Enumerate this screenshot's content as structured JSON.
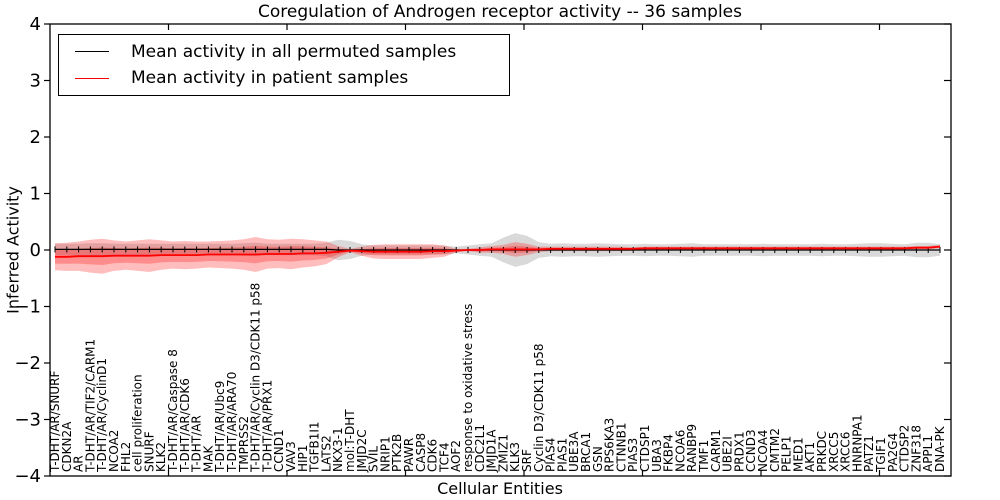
{
  "chart_data": {
    "type": "line",
    "title": "Coregulation of Androgen receptor activity -- 36 samples",
    "xlabel": "Cellular Entities",
    "ylabel": "Inferred Activity",
    "ylim": [
      -4,
      4
    ],
    "yticks": [
      -4,
      -3,
      -2,
      -1,
      0,
      1,
      2,
      3,
      4
    ],
    "grid": false,
    "legend_position": "upper left",
    "band_note": "shaded region around each line = mean ± std across samples",
    "sample_count": 36,
    "categories": [
      "T-DHT/AR/SNURF",
      "CDKN2A",
      "AR",
      "T-DHT/AR/TIF2/CARM1",
      "T-DHT/AR/CyclinD1",
      "NCOA2",
      "FHL2",
      "cell proliferation",
      "SNURF",
      "KLK2",
      "T-DHT/AR/Caspase 8",
      "T-DHT/AR/CDK6",
      "T-DHT/AR",
      "MAK",
      "T-DHT/AR/Ubc9",
      "T-DHT/AR/ARA70",
      "TMPRSS2",
      "T-DHT/AR/Cyclin D3/CDK11 p58",
      "T-DHT/AR/PRX1",
      "CCND1",
      "VAV3",
      "HIP1",
      "TGFB1I1",
      "LATS2",
      "NKX3-1",
      "mol:T-DHT",
      "JMJD2C",
      "SVIL",
      "NRIP1",
      "PTK2B",
      "PAWR",
      "CASP8",
      "CDK6",
      "TCF4",
      "AOF2",
      "response to oxidative stress",
      "CDC2L1",
      "JMJD1A",
      "ZMIZ1",
      "KLK3",
      "SRF",
      "Cyclin D3/CDK11 p58",
      "PIAS4",
      "PIAS1",
      "UBE3A",
      "BRCA1",
      "GSN",
      "RPS6KA3",
      "CTNNB1",
      "PIAS3",
      "CTDSP1",
      "UBA3",
      "FKBP4",
      "NCOA6",
      "RANBP9",
      "TMF1",
      "CARM1",
      "UBE2I",
      "PRDX1",
      "CCND3",
      "NCOA4",
      "CMTM2",
      "PELP1",
      "MED1",
      "AKT1",
      "PRKDC",
      "XRCC5",
      "XRCC6",
      "HNRNPA1",
      "PATZ1",
      "TGIF1",
      "PA2G4",
      "CTDSP2",
      "ZNF318",
      "APPL1",
      "DNA-PK"
    ],
    "series": [
      {
        "name": "Mean activity in all permuted samples",
        "color": "#000000",
        "band_color": "#777777",
        "band_opacity": 0.28,
        "mean": [
          0.01,
          0.01,
          0.01,
          0.01,
          0.01,
          0.01,
          0.01,
          0.01,
          0.01,
          0.01,
          0.01,
          0.01,
          0.01,
          0.01,
          0.01,
          0.01,
          0.01,
          0.01,
          0.01,
          0.01,
          0.01,
          0.01,
          0.01,
          0.01,
          0.0,
          0.0,
          0.0,
          0.0,
          0.0,
          0.0,
          0.0,
          0.0,
          0.0,
          0.0,
          0.0,
          0.0,
          0.0,
          0.0,
          0.0,
          0.0,
          0.0,
          0.0,
          0.0,
          0.0,
          0.0,
          0.0,
          0.0,
          0.0,
          0.0,
          0.0,
          0.0,
          0.0,
          0.0,
          0.0,
          0.0,
          0.0,
          0.0,
          0.0,
          0.0,
          0.0,
          0.0,
          0.0,
          0.0,
          0.0,
          0.0,
          0.0,
          0.0,
          0.0,
          0.0,
          0.0,
          0.0,
          0.0,
          0.0,
          0.0,
          0.0,
          0.0
        ],
        "std": [
          0.1,
          0.1,
          0.1,
          0.11,
          0.11,
          0.1,
          0.1,
          0.1,
          0.1,
          0.1,
          0.1,
          0.1,
          0.1,
          0.1,
          0.1,
          0.1,
          0.11,
          0.12,
          0.1,
          0.1,
          0.1,
          0.1,
          0.1,
          0.12,
          0.18,
          0.16,
          0.1,
          0.08,
          0.08,
          0.08,
          0.08,
          0.08,
          0.08,
          0.08,
          0.06,
          0.08,
          0.1,
          0.12,
          0.22,
          0.3,
          0.25,
          0.14,
          0.11,
          0.12,
          0.11,
          0.11,
          0.12,
          0.11,
          0.1,
          0.1,
          0.11,
          0.1,
          0.1,
          0.11,
          0.12,
          0.1,
          0.1,
          0.1,
          0.1,
          0.1,
          0.11,
          0.1,
          0.1,
          0.1,
          0.1,
          0.11,
          0.1,
          0.1,
          0.11,
          0.12,
          0.12,
          0.11,
          0.1,
          0.13,
          0.13,
          0.1
        ]
      },
      {
        "name": "Mean activity in patient samples",
        "color": "#ff0000",
        "band_color": "#ff0000",
        "band_opacity": 0.26,
        "mean": [
          -0.12,
          -0.12,
          -0.11,
          -0.11,
          -0.11,
          -0.1,
          -0.1,
          -0.1,
          -0.1,
          -0.09,
          -0.09,
          -0.09,
          -0.09,
          -0.08,
          -0.08,
          -0.08,
          -0.08,
          -0.08,
          -0.07,
          -0.07,
          -0.07,
          -0.06,
          -0.06,
          -0.05,
          -0.03,
          -0.01,
          -0.02,
          -0.03,
          -0.03,
          -0.03,
          -0.03,
          -0.03,
          -0.02,
          -0.02,
          -0.01,
          0.0,
          0.0,
          0.01,
          0.01,
          0.01,
          0.01,
          0.01,
          0.02,
          0.02,
          0.02,
          0.02,
          0.02,
          0.02,
          0.02,
          0.02,
          0.03,
          0.03,
          0.03,
          0.03,
          0.03,
          0.03,
          0.03,
          0.03,
          0.03,
          0.03,
          0.03,
          0.03,
          0.03,
          0.03,
          0.03,
          0.03,
          0.03,
          0.03,
          0.03,
          0.03,
          0.03,
          0.03,
          0.03,
          0.04,
          0.04,
          0.06
        ],
        "std": [
          0.24,
          0.25,
          0.26,
          0.29,
          0.31,
          0.27,
          0.25,
          0.27,
          0.29,
          0.26,
          0.24,
          0.25,
          0.24,
          0.23,
          0.24,
          0.25,
          0.27,
          0.31,
          0.26,
          0.25,
          0.27,
          0.25,
          0.23,
          0.2,
          0.1,
          0.03,
          0.08,
          0.12,
          0.13,
          0.13,
          0.13,
          0.13,
          0.12,
          0.1,
          0.03,
          0.02,
          0.05,
          0.06,
          0.08,
          0.13,
          0.1,
          0.05,
          0.04,
          0.04,
          0.04,
          0.04,
          0.04,
          0.04,
          0.04,
          0.03,
          0.03,
          0.03,
          0.03,
          0.03,
          0.03,
          0.03,
          0.03,
          0.03,
          0.03,
          0.03,
          0.03,
          0.03,
          0.03,
          0.03,
          0.03,
          0.03,
          0.03,
          0.03,
          0.03,
          0.03,
          0.03,
          0.03,
          0.03,
          0.03,
          0.03,
          0.03
        ]
      }
    ]
  }
}
